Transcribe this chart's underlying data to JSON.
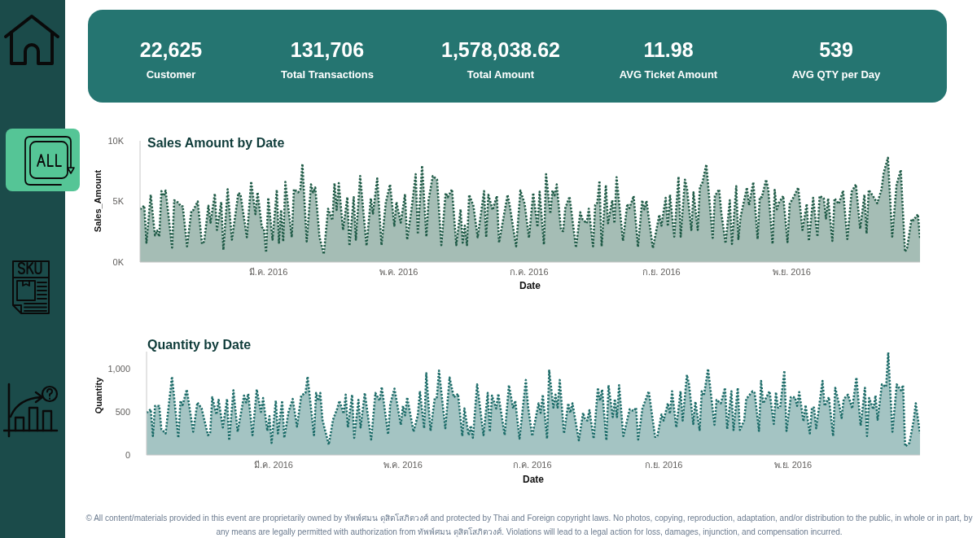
{
  "chart_data": [
    {
      "type": "other",
      "categories": [
        "Customer",
        "Total Transactions",
        "Total Amount",
        "AVG Ticket Amount",
        "AVG QTY per Day"
      ],
      "value_labels": [
        "22,625",
        "131,706",
        "1,578,038.62",
        "11.98",
        "539"
      ]
    },
    {
      "type": "area",
      "title": "Sales Amount by Date",
      "xlabel": "Date",
      "ylabel": "Sales_Amount",
      "xlim": [
        "2016-01-01",
        "2016-12-31"
      ],
      "xticks": [
        {
          "value": "2016-03-01",
          "label": "มี.ค. 2016"
        },
        {
          "value": "2016-05-01",
          "label": "พ.ค. 2016"
        },
        {
          "value": "2016-07-01",
          "label": "ก.ค. 2016"
        },
        {
          "value": "2016-09-01",
          "label": "ก.ย. 2016"
        },
        {
          "value": "2016-11-01",
          "label": "พ.ย. 2016"
        }
      ],
      "ylim": [
        0,
        10000
      ],
      "yticks": [
        {
          "value": 0,
          "label": "0K"
        },
        {
          "value": 5000,
          "label": "5K"
        },
        {
          "value": 10000,
          "label": "10K"
        }
      ],
      "line_style": "dotted",
      "series": [
        {
          "color": "#1e5a46",
          "x": [
            "2016-01-01",
            "2016-01-03",
            "2016-01-04",
            "2016-01-06",
            "2016-01-08",
            "2016-01-09",
            "2016-01-10",
            "2016-01-11",
            "2016-01-12",
            "2016-01-13",
            "2016-01-16",
            "2016-01-17",
            "2016-01-19",
            "2016-01-20",
            "2016-01-21",
            "2016-01-23",
            "2016-01-25",
            "2016-01-26",
            "2016-01-28",
            "2016-01-30",
            "2016-01-31",
            "2016-02-02",
            "2016-02-03",
            "2016-02-05",
            "2016-02-06",
            "2016-02-08",
            "2016-02-09",
            "2016-02-11",
            "2016-02-13",
            "2016-02-16",
            "2016-02-17",
            "2016-02-20",
            "2016-02-22",
            "2016-02-24",
            "2016-02-25",
            "2016-02-27",
            "2016-02-28",
            "2016-02-29",
            "2016-03-01",
            "2016-03-03",
            "2016-03-05",
            "2016-03-06",
            "2016-03-07",
            "2016-03-08",
            "2016-03-09",
            "2016-03-12",
            "2016-03-13",
            "2016-03-15",
            "2016-03-16",
            "2016-03-17",
            "2016-03-19",
            "2016-03-21",
            "2016-03-22",
            "2016-03-23",
            "2016-03-25",
            "2016-03-27",
            "2016-03-29",
            "2016-03-31",
            "2016-04-01",
            "2016-04-02",
            "2016-04-03",
            "2016-04-05",
            "2016-04-07",
            "2016-04-08",
            "2016-04-10",
            "2016-04-11",
            "2016-04-13",
            "2016-04-16",
            "2016-04-18",
            "2016-04-19",
            "2016-04-21",
            "2016-04-23",
            "2016-04-25",
            "2016-04-27",
            "2016-04-29",
            "2016-04-30",
            "2016-05-02",
            "2016-05-04",
            "2016-05-05",
            "2016-05-07",
            "2016-05-09",
            "2016-05-10",
            "2016-05-12",
            "2016-05-14",
            "2016-05-15",
            "2016-05-17",
            "2016-05-19",
            "2016-05-21",
            "2016-05-23",
            "2016-05-24",
            "2016-05-26",
            "2016-05-28",
            "2016-05-30",
            "2016-05-31",
            "2016-06-01",
            "2016-06-02",
            "2016-06-03",
            "2016-06-05",
            "2016-06-07",
            "2016-06-10",
            "2016-06-11",
            "2016-06-12",
            "2016-06-14",
            "2016-06-16",
            "2016-06-17",
            "2016-06-21",
            "2016-06-22",
            "2016-06-25",
            "2016-06-27",
            "2016-06-29",
            "2016-07-01",
            "2016-07-03",
            "2016-07-05",
            "2016-07-06",
            "2016-07-08",
            "2016-07-09",
            "2016-07-11",
            "2016-07-12",
            "2016-07-13",
            "2016-07-14",
            "2016-07-16",
            "2016-07-17",
            "2016-07-18",
            "2016-07-20",
            "2016-07-23",
            "2016-07-25",
            "2016-07-26",
            "2016-07-28",
            "2016-07-29",
            "2016-07-31",
            "2016-08-01",
            "2016-08-02",
            "2016-08-03",
            "2016-08-04",
            "2016-08-06",
            "2016-08-07",
            "2016-08-09",
            "2016-08-10",
            "2016-08-11",
            "2016-08-14",
            "2016-08-16",
            "2016-08-17",
            "2016-08-19",
            "2016-08-21",
            "2016-08-23",
            "2016-08-24",
            "2016-08-25",
            "2016-08-28",
            "2016-08-31",
            "2016-09-01",
            "2016-09-03",
            "2016-09-04",
            "2016-09-05",
            "2016-09-07",
            "2016-09-09",
            "2016-09-10",
            "2016-09-12",
            "2016-09-13",
            "2016-09-15",
            "2016-09-16",
            "2016-09-18",
            "2016-09-19",
            "2016-09-20",
            "2016-09-22",
            "2016-09-25",
            "2016-09-26",
            "2016-09-28",
            "2016-09-29",
            "2016-10-01",
            "2016-10-03",
            "2016-10-04",
            "2016-10-06",
            "2016-10-07",
            "2016-10-08",
            "2016-10-11",
            "2016-10-12",
            "2016-10-14",
            "2016-10-16",
            "2016-10-17",
            "2016-10-18",
            "2016-10-20",
            "2016-10-21",
            "2016-10-23",
            "2016-10-24",
            "2016-10-25",
            "2016-10-26",
            "2016-10-28",
            "2016-10-30",
            "2016-10-31",
            "2016-11-02",
            "2016-11-04",
            "2016-11-06",
            "2016-11-08",
            "2016-11-09",
            "2016-11-11",
            "2016-11-13",
            "2016-11-14",
            "2016-11-16",
            "2016-11-17",
            "2016-11-18",
            "2016-11-20",
            "2016-11-21",
            "2016-11-23",
            "2016-11-25",
            "2016-11-27",
            "2016-11-29",
            "2016-12-01",
            "2016-12-03",
            "2016-12-05",
            "2016-12-06",
            "2016-12-07",
            "2016-12-09",
            "2016-12-11",
            "2016-12-13",
            "2016-12-14",
            "2016-12-16",
            "2016-12-18",
            "2016-12-20",
            "2016-12-22",
            "2016-12-24",
            "2016-12-25",
            "2016-12-27",
            "2016-12-28",
            "2016-12-30",
            "2016-12-31"
          ],
          "values": [
            4350,
            4650,
            1600,
            5550,
            2200,
            2600,
            2100,
            5850,
            5450,
            5900,
            1200,
            5100,
            4900,
            4600,
            4600,
            1300,
            4200,
            4300,
            5000,
            1500,
            1700,
            4650,
            3250,
            5650,
            2650,
            4950,
            1000,
            6000,
            1850,
            5700,
            5600,
            2050,
            6650,
            3950,
            5750,
            2900,
            2700,
            800,
            5300,
            1850,
            5950,
            1600,
            4300,
            1700,
            6600,
            2050,
            6000,
            5750,
            6000,
            8100,
            1700,
            6400,
            5750,
            6150,
            2050,
            650,
            4400,
            3450,
            6500,
            4300,
            6500,
            2650,
            5350,
            1350,
            5350,
            1850,
            7100,
            1350,
            5250,
            4000,
            6900,
            1400,
            4900,
            6400,
            3000,
            4950,
            3250,
            5600,
            1850,
            4300,
            7250,
            2300,
            7950,
            2100,
            5100,
            7100,
            6800,
            1400,
            5700,
            5350,
            6000,
            1400,
            4350,
            1600,
            3000,
            1400,
            5550,
            4650,
            2050,
            5850,
            2050,
            5550,
            4300,
            5450,
            1600,
            5550,
            4650,
            1300,
            5900,
            4800,
            2000,
            5700,
            2900,
            5800,
            1450,
            7250,
            4000,
            5900,
            5500,
            6400,
            2650,
            2550,
            4450,
            5400,
            1200,
            4100,
            3550,
            3200,
            4400,
            1300,
            4700,
            4900,
            6700,
            1300,
            6350,
            3200,
            5100,
            3200,
            7000,
            1750,
            4800,
            4450,
            5450,
            1250,
            5100,
            4350,
            5050,
            1150,
            3900,
            3000,
            5300,
            2950,
            5550,
            2100,
            7050,
            2100,
            6800,
            6000,
            2650,
            5750,
            2650,
            6250,
            6400,
            8050,
            2000,
            5450,
            6000,
            4100,
            1550,
            5100,
            1500,
            6250,
            1900,
            3700,
            6150,
            4700,
            6600,
            1900,
            5350,
            5350,
            6800,
            6000,
            1500,
            5950,
            4350,
            4900,
            5450,
            1650,
            4800,
            5400,
            6150,
            2650,
            4800,
            1750,
            5300,
            2100,
            5450,
            5250,
            3600,
            5250,
            1750,
            5250,
            4800,
            5900,
            1900,
            5800,
            6400,
            2750,
            5550,
            2350,
            5950,
            5450,
            4850,
            6000,
            7350,
            8600,
            2100,
            6350,
            7600,
            850,
            1200,
            3550,
            3450,
            3950,
            2000
          ]
        }
      ]
    },
    {
      "type": "area",
      "title": "Quantity by Date",
      "xlabel": "Date",
      "ylabel": "Quantity",
      "xlim": [
        "2016-01-01",
        "2016-12-31"
      ],
      "xticks": [
        {
          "value": "2016-03-01",
          "label": "มี.ค. 2016"
        },
        {
          "value": "2016-05-01",
          "label": "พ.ค. 2016"
        },
        {
          "value": "2016-07-01",
          "label": "ก.ค. 2016"
        },
        {
          "value": "2016-09-01",
          "label": "ก.ย. 2016"
        },
        {
          "value": "2016-11-01",
          "label": "พ.ย. 2016"
        }
      ],
      "ylim": [
        0,
        1200
      ],
      "yticks": [
        0,
        500,
        {
          "value": 1000,
          "label": "1,000"
        }
      ],
      "line_style": "dotted",
      "series": [
        {
          "color": "#1b6b68",
          "x": [
            "2016-01-01",
            "2016-01-03",
            "2016-01-04",
            "2016-01-05",
            "2016-01-07",
            "2016-01-08",
            "2016-01-10",
            "2016-01-13",
            "2016-01-16",
            "2016-01-17",
            "2016-01-18",
            "2016-01-20",
            "2016-01-23",
            "2016-01-25",
            "2016-01-27",
            "2016-01-30",
            "2016-01-31",
            "2016-02-01",
            "2016-02-03",
            "2016-02-04",
            "2016-02-06",
            "2016-02-08",
            "2016-02-09",
            "2016-02-11",
            "2016-02-13",
            "2016-02-16",
            "2016-02-17",
            "2016-02-18",
            "2016-02-20",
            "2016-02-22",
            "2016-02-24",
            "2016-02-25",
            "2016-02-27",
            "2016-02-28",
            "2016-02-29",
            "2016-03-02",
            "2016-03-03",
            "2016-03-05",
            "2016-03-06",
            "2016-03-08",
            "2016-03-10",
            "2016-03-12",
            "2016-03-14",
            "2016-03-16",
            "2016-03-17",
            "2016-03-20",
            "2016-03-21",
            "2016-03-22",
            "2016-03-23",
            "2016-03-24",
            "2016-03-27",
            "2016-03-29",
            "2016-03-31",
            "2016-04-01",
            "2016-04-03",
            "2016-04-04",
            "2016-04-05",
            "2016-04-07",
            "2016-04-08",
            "2016-04-10",
            "2016-04-11",
            "2016-04-13",
            "2016-04-16",
            "2016-04-18",
            "2016-04-20",
            "2016-04-21",
            "2016-04-24",
            "2016-04-25",
            "2016-04-27",
            "2016-04-30",
            "2016-05-01",
            "2016-05-02",
            "2016-05-03",
            "2016-05-06",
            "2016-05-08",
            "2016-05-09",
            "2016-05-11",
            "2016-05-12",
            "2016-05-14",
            "2016-05-16",
            "2016-05-17",
            "2016-05-18",
            "2016-05-21",
            "2016-05-23",
            "2016-05-25",
            "2016-05-27",
            "2016-05-29",
            "2016-05-30",
            "2016-06-01",
            "2016-06-02",
            "2016-06-03",
            "2016-06-05",
            "2016-06-06",
            "2016-06-08",
            "2016-06-10",
            "2016-06-11",
            "2016-06-12",
            "2016-06-14",
            "2016-06-15",
            "2016-06-18",
            "2016-06-20",
            "2016-06-22",
            "2016-06-23",
            "2016-06-25",
            "2016-06-28",
            "2016-06-29",
            "2016-07-01",
            "2016-07-04",
            "2016-07-05",
            "2016-07-06",
            "2016-07-08",
            "2016-07-09",
            "2016-07-11",
            "2016-07-12",
            "2016-07-13",
            "2016-07-14",
            "2016-07-16",
            "2016-07-18",
            "2016-07-19",
            "2016-07-20",
            "2016-07-23",
            "2016-07-25",
            "2016-07-26",
            "2016-07-27",
            "2016-07-28",
            "2016-07-30",
            "2016-08-01",
            "2016-08-02",
            "2016-08-03",
            "2016-08-05",
            "2016-08-06",
            "2016-08-08",
            "2016-08-09",
            "2016-08-10",
            "2016-08-11",
            "2016-08-13",
            "2016-08-16",
            "2016-08-18",
            "2016-08-19",
            "2016-08-20",
            "2016-08-22",
            "2016-08-25",
            "2016-08-28",
            "2016-08-29",
            "2016-08-31",
            "2016-09-01",
            "2016-09-03",
            "2016-09-04",
            "2016-09-05",
            "2016-09-07",
            "2016-09-09",
            "2016-09-10",
            "2016-09-12",
            "2016-09-13",
            "2016-09-15",
            "2016-09-16",
            "2016-09-18",
            "2016-09-19",
            "2016-09-20",
            "2016-09-22",
            "2016-09-25",
            "2016-09-26",
            "2016-09-28",
            "2016-09-30",
            "2016-10-01",
            "2016-10-03",
            "2016-10-04",
            "2016-10-06",
            "2016-10-07",
            "2016-10-09",
            "2016-10-10",
            "2016-10-13",
            "2016-10-14",
            "2016-10-16",
            "2016-10-17",
            "2016-10-18",
            "2016-10-21",
            "2016-10-23",
            "2016-10-24",
            "2016-10-25",
            "2016-10-26",
            "2016-10-28",
            "2016-10-29",
            "2016-10-31",
            "2016-11-02",
            "2016-11-03",
            "2016-11-04",
            "2016-11-06",
            "2016-11-07",
            "2016-11-09",
            "2016-11-10",
            "2016-11-11",
            "2016-11-12",
            "2016-11-15",
            "2016-11-16",
            "2016-11-18",
            "2016-11-20",
            "2016-11-21",
            "2016-11-23",
            "2016-11-24",
            "2016-11-25",
            "2016-11-27",
            "2016-11-29",
            "2016-12-01",
            "2016-12-03",
            "2016-12-05",
            "2016-12-06",
            "2016-12-07",
            "2016-12-09",
            "2016-12-10",
            "2016-12-11",
            "2016-12-13",
            "2016-12-15",
            "2016-12-16",
            "2016-12-18",
            "2016-12-20",
            "2016-12-22",
            "2016-12-23",
            "2016-12-24",
            "2016-12-26",
            "2016-12-28",
            "2016-12-29",
            "2016-12-31"
          ],
          "values": [
            490,
            530,
            220,
            570,
            570,
            300,
            250,
            910,
            200,
            630,
            580,
            760,
            270,
            610,
            540,
            230,
            250,
            670,
            470,
            640,
            320,
            650,
            170,
            750,
            270,
            690,
            610,
            710,
            230,
            760,
            500,
            660,
            280,
            450,
            140,
            630,
            250,
            630,
            200,
            500,
            650,
            330,
            690,
            720,
            910,
            230,
            720,
            630,
            720,
            410,
            120,
            410,
            540,
            630,
            480,
            700,
            320,
            700,
            200,
            640,
            320,
            720,
            180,
            720,
            630,
            790,
            240,
            590,
            770,
            350,
            570,
            460,
            670,
            270,
            460,
            740,
            310,
            950,
            280,
            660,
            670,
            980,
            310,
            900,
            670,
            710,
            220,
            540,
            230,
            340,
            200,
            820,
            630,
            230,
            720,
            270,
            690,
            540,
            710,
            230,
            810,
            540,
            630,
            190,
            870,
            570,
            220,
            600,
            490,
            700,
            190,
            980,
            550,
            700,
            550,
            870,
            250,
            600,
            490,
            600,
            170,
            490,
            410,
            400,
            520,
            190,
            780,
            630,
            760,
            170,
            810,
            440,
            650,
            440,
            810,
            220,
            530,
            510,
            550,
            180,
            540,
            740,
            210,
            210,
            470,
            400,
            600,
            480,
            740,
            320,
            740,
            400,
            930,
            820,
            360,
            620,
            290,
            740,
            690,
            1000,
            350,
            640,
            600,
            780,
            300,
            740,
            290,
            780,
            290,
            400,
            650,
            740,
            720,
            280,
            860,
            600,
            740,
            360,
            730,
            550,
            550,
            980,
            280,
            670,
            670,
            570,
            730,
            390,
            580,
            250,
            550,
            550,
            310,
            860,
            570,
            670,
            220,
            780,
            570,
            430,
            650,
            700,
            540,
            900,
            340,
            780,
            220,
            660,
            530,
            690,
            410,
            820,
            790,
            1190,
            270,
            820,
            750,
            810,
            100,
            140,
            400,
            600,
            250
          ]
        }
      ],
      "annotations": [
        "© All content/materials provided in this event are proprietarily owned by ทัพพ์ศมน ดุสิตโสภิตวงศ์ and protected by Thai and Foreign copyright laws. No photos, copying, reproduction, adaptation, and/or distribution to the public, in whole or in part, by any means are legally permitted with authorization from ทัพพ์ศมน ดุสิตโสภิตวงศ์. Violations will lead to a legal action for loss, damages, injunction, and compensation incurred."
      ]
    }
  ]
}
